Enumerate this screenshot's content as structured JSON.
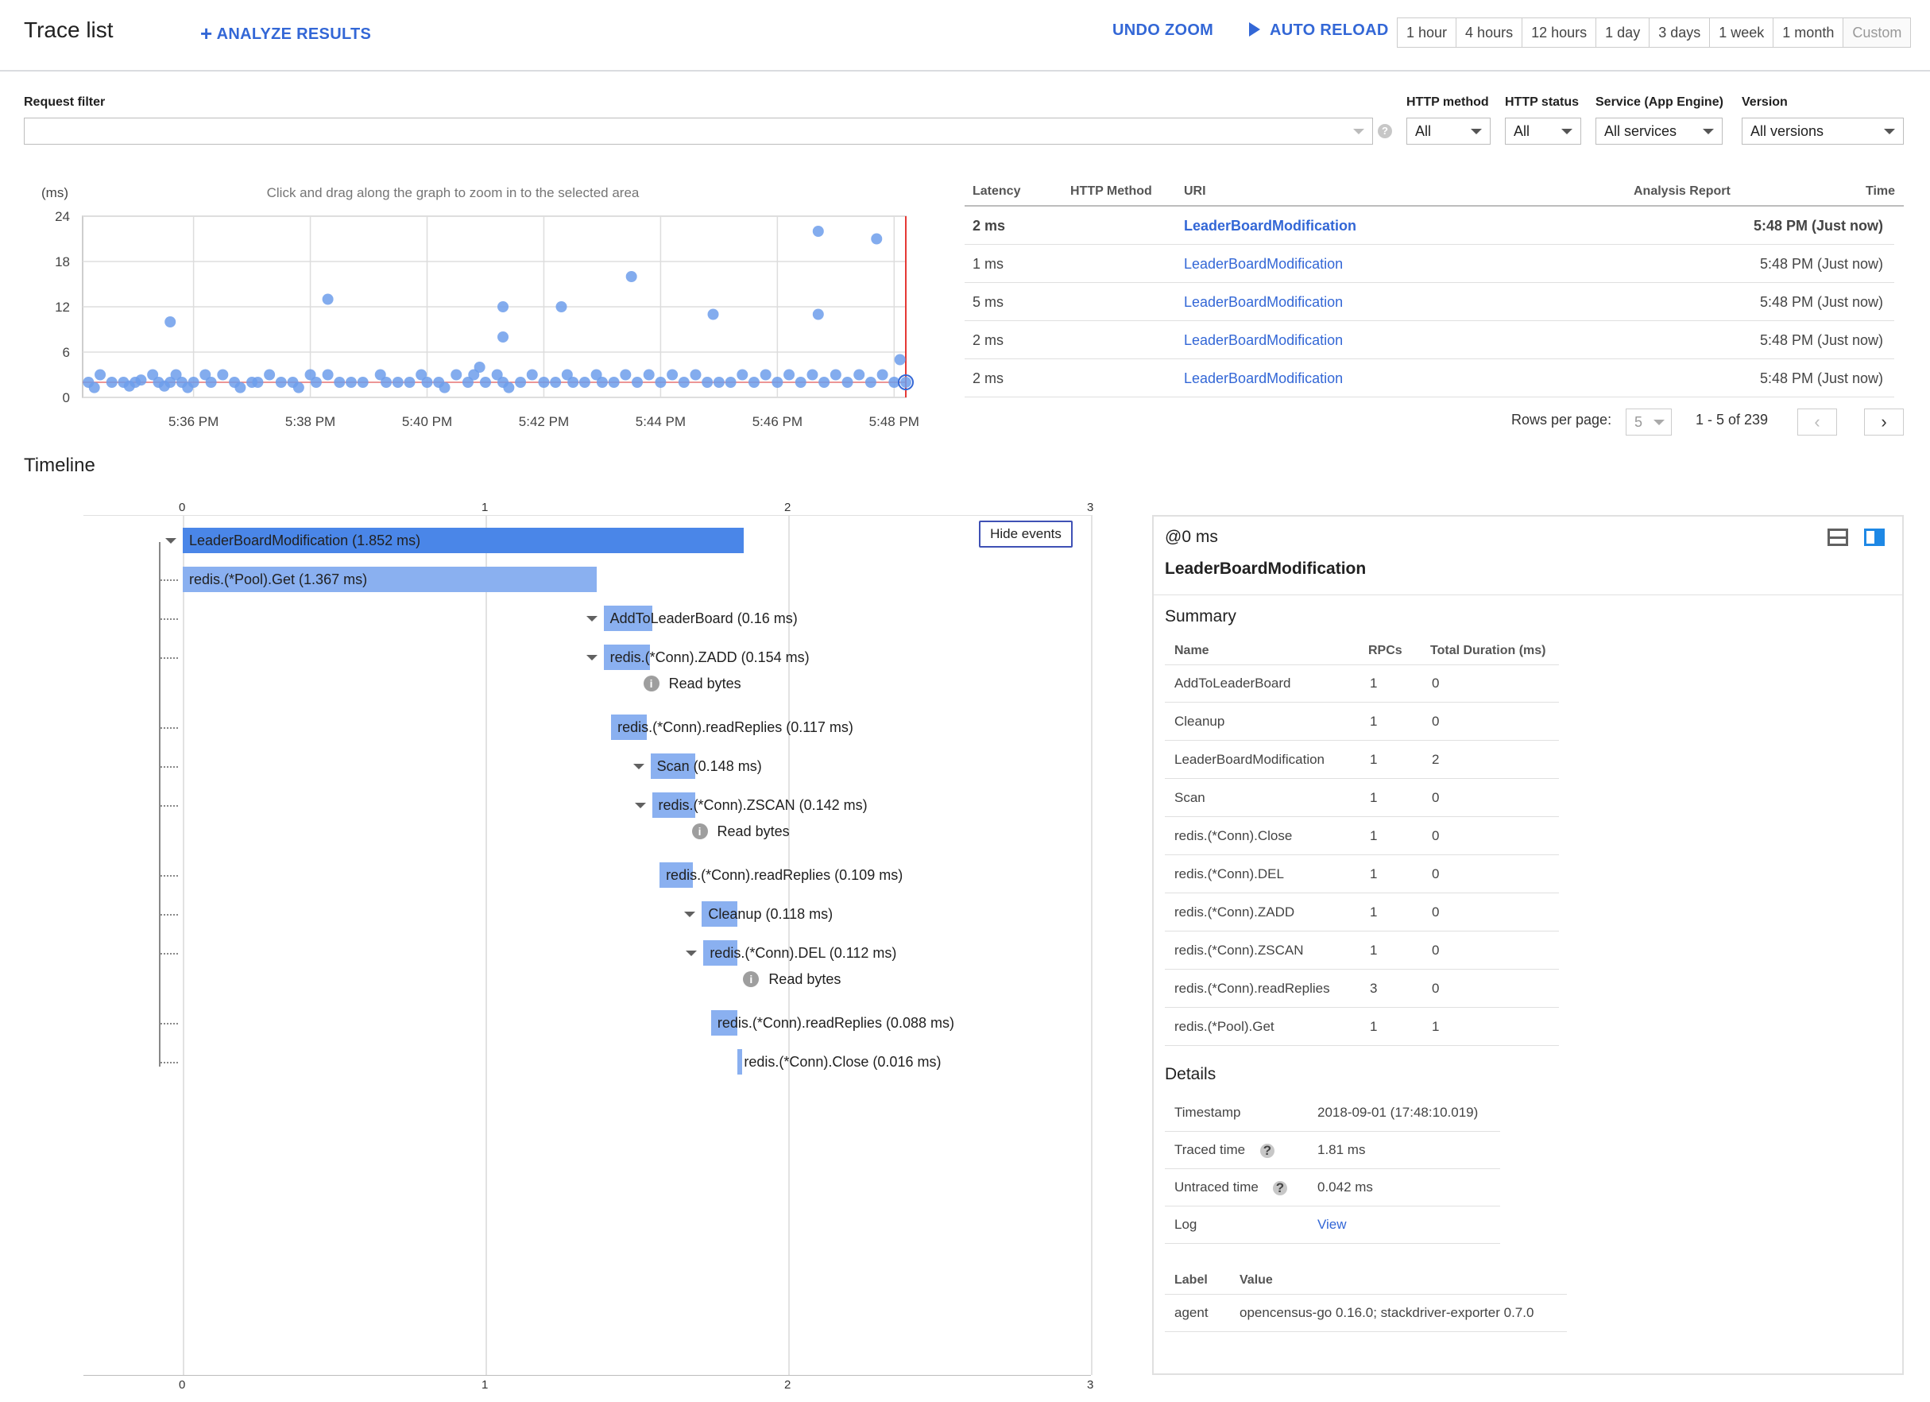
{
  "header": {
    "title": "Trace list",
    "analyze_label": "ANALYZE RESULTS",
    "undo_zoom_label": "UNDO ZOOM",
    "auto_reload_label": "AUTO RELOAD",
    "time_ranges": [
      "1 hour",
      "4 hours",
      "12 hours",
      "1 day",
      "3 days",
      "1 week",
      "1 month",
      "Custom"
    ]
  },
  "filters": {
    "request_filter_label": "Request filter",
    "request_filter_value": "",
    "http_method_label": "HTTP method",
    "http_method_value": "All",
    "http_status_label": "HTTP status",
    "http_status_value": "All",
    "service_label": "Service (App Engine)",
    "service_value": "All services",
    "version_label": "Version",
    "version_value": "All versions"
  },
  "chart_data": {
    "type": "scatter",
    "title": "",
    "hint": "Click and drag along the graph to zoom in to the selected area",
    "ylabel": "(ms)",
    "xlabel": "",
    "ylim": [
      0,
      24
    ],
    "y_ticks": [
      "0",
      "6",
      "12",
      "18",
      "24"
    ],
    "x_ticks": [
      "5:36 PM",
      "5:38 PM",
      "5:40 PM",
      "5:42 PM",
      "5:44 PM",
      "5:46 PM",
      "5:48 PM"
    ],
    "xlim_minutes": [
      34.1,
      48.2
    ],
    "grid": true,
    "points": [
      [
        34.2,
        2
      ],
      [
        34.3,
        1.3
      ],
      [
        34.4,
        3
      ],
      [
        34.6,
        2
      ],
      [
        34.8,
        2
      ],
      [
        34.9,
        1.5
      ],
      [
        35,
        2
      ],
      [
        35.1,
        2.3
      ],
      [
        35.3,
        3
      ],
      [
        35.4,
        2
      ],
      [
        35.5,
        1.5
      ],
      [
        35.6,
        2
      ],
      [
        35.7,
        3
      ],
      [
        35.8,
        2
      ],
      [
        35.9,
        1.3
      ],
      [
        35.6,
        10
      ],
      [
        36,
        2
      ],
      [
        36.2,
        3
      ],
      [
        36.3,
        2
      ],
      [
        36.5,
        3
      ],
      [
        36.7,
        2
      ],
      [
        36.8,
        1.3
      ],
      [
        37,
        2
      ],
      [
        37.1,
        2
      ],
      [
        37.3,
        3
      ],
      [
        37.5,
        2
      ],
      [
        37.7,
        2
      ],
      [
        37.8,
        1.3
      ],
      [
        38,
        3
      ],
      [
        38.1,
        2
      ],
      [
        38.3,
        3
      ],
      [
        38.5,
        2
      ],
      [
        38.7,
        2
      ],
      [
        38.9,
        2
      ],
      [
        38.3,
        13
      ],
      [
        39.2,
        3
      ],
      [
        39.3,
        2
      ],
      [
        39.5,
        2
      ],
      [
        39.7,
        2
      ],
      [
        39.9,
        3
      ],
      [
        40,
        2
      ],
      [
        40.2,
        2
      ],
      [
        40.3,
        1.3
      ],
      [
        40.5,
        3
      ],
      [
        40.7,
        2
      ],
      [
        40.8,
        3
      ],
      [
        40.9,
        4
      ],
      [
        41,
        2
      ],
      [
        41.2,
        3
      ],
      [
        41.3,
        2
      ],
      [
        41.4,
        1.3
      ],
      [
        41.3,
        12
      ],
      [
        41.3,
        8
      ],
      [
        41.6,
        2
      ],
      [
        41.8,
        3
      ],
      [
        42,
        2
      ],
      [
        42.2,
        2
      ],
      [
        42.4,
        3
      ],
      [
        42.5,
        2
      ],
      [
        42.7,
        2
      ],
      [
        42.9,
        3
      ],
      [
        43,
        2
      ],
      [
        43.2,
        2
      ],
      [
        43.4,
        3
      ],
      [
        43.6,
        2
      ],
      [
        43.8,
        3
      ],
      [
        44,
        2
      ],
      [
        44.2,
        3
      ],
      [
        44.4,
        2
      ],
      [
        44.6,
        3
      ],
      [
        44.8,
        2
      ],
      [
        45,
        2
      ],
      [
        42.3,
        12
      ],
      [
        43.5,
        16
      ],
      [
        44.9,
        11
      ],
      [
        45.2,
        2
      ],
      [
        45.4,
        3
      ],
      [
        45.6,
        2
      ],
      [
        45.8,
        3
      ],
      [
        46,
        2
      ],
      [
        46.2,
        3
      ],
      [
        46.4,
        2
      ],
      [
        46.6,
        3
      ],
      [
        46.8,
        2
      ],
      [
        47,
        3
      ],
      [
        47.2,
        2
      ],
      [
        47.4,
        3
      ],
      [
        47.6,
        2
      ],
      [
        47.8,
        3
      ],
      [
        48,
        2
      ],
      [
        48.1,
        5
      ],
      [
        48.2,
        2
      ],
      [
        46.7,
        22
      ],
      [
        46.7,
        11
      ],
      [
        47.7,
        21
      ]
    ]
  },
  "traces": {
    "columns": [
      "Latency",
      "HTTP Method",
      "URI",
      "Analysis Report",
      "Time"
    ],
    "rows": [
      {
        "latency": "2 ms",
        "method": "",
        "uri": "LeaderBoardModification",
        "report": "",
        "time": "5:48 PM (Just now)"
      },
      {
        "latency": "1 ms",
        "method": "",
        "uri": "LeaderBoardModification",
        "report": "",
        "time": "5:48 PM (Just now)"
      },
      {
        "latency": "5 ms",
        "method": "",
        "uri": "LeaderBoardModification",
        "report": "",
        "time": "5:48 PM (Just now)"
      },
      {
        "latency": "2 ms",
        "method": "",
        "uri": "LeaderBoardModification",
        "report": "",
        "time": "5:48 PM (Just now)"
      },
      {
        "latency": "2 ms",
        "method": "",
        "uri": "LeaderBoardModification",
        "report": "",
        "time": "5:48 PM (Just now)"
      }
    ],
    "rows_per_page_label": "Rows per page:",
    "rows_per_page_value": "5",
    "range_text": "1 - 5 of 239"
  },
  "timeline": {
    "title": "Timeline",
    "ticks": [
      "0",
      "1",
      "2",
      "3"
    ],
    "hide_events_label": "Hide events",
    "spans": [
      {
        "label": "LeaderBoardModification (1.852 ms)",
        "start": 0,
        "duration": 1.852,
        "color": "#4a86e8",
        "expand": true,
        "event": ""
      },
      {
        "label": "redis.(*Pool).Get (1.367 ms)",
        "start": 0,
        "duration": 1.367,
        "color": "#8ab0f0",
        "expand": false,
        "event": ""
      },
      {
        "label": "AddToLeaderBoard (0.16 ms)",
        "start": 1.39,
        "duration": 0.16,
        "color": "#8ab0f0",
        "expand": true,
        "event": ""
      },
      {
        "label": "redis.(*Conn).ZADD (0.154 ms)",
        "start": 1.39,
        "duration": 0.154,
        "color": "#8ab0f0",
        "expand": true,
        "event": "Read bytes"
      },
      {
        "label": "redis.(*Conn).readReplies (0.117 ms)",
        "start": 1.415,
        "duration": 0.117,
        "color": "#8ab0f0",
        "expand": false,
        "event": ""
      },
      {
        "label": "Scan (0.148 ms)",
        "start": 1.545,
        "duration": 0.148,
        "color": "#8ab0f0",
        "expand": true,
        "event": ""
      },
      {
        "label": "redis.(*Conn).ZSCAN (0.142 ms)",
        "start": 1.55,
        "duration": 0.142,
        "color": "#8ab0f0",
        "expand": true,
        "event": "Read bytes"
      },
      {
        "label": "redis.(*Conn).readReplies (0.109 ms)",
        "start": 1.575,
        "duration": 0.109,
        "color": "#8ab0f0",
        "expand": false,
        "event": ""
      },
      {
        "label": "Cleanup (0.118 ms)",
        "start": 1.715,
        "duration": 0.118,
        "color": "#8ab0f0",
        "expand": true,
        "event": ""
      },
      {
        "label": "redis.(*Conn).DEL (0.112 ms)",
        "start": 1.72,
        "duration": 0.112,
        "color": "#8ab0f0",
        "expand": true,
        "event": "Read bytes"
      },
      {
        "label": "redis.(*Conn).readReplies (0.088 ms)",
        "start": 1.745,
        "duration": 0.088,
        "color": "#8ab0f0",
        "expand": false,
        "event": ""
      },
      {
        "label": "redis.(*Conn).Close (0.016 ms)",
        "start": 1.833,
        "duration": 0.016,
        "color": "#8ab0f0",
        "expand": false,
        "event": ""
      }
    ]
  },
  "details_panel": {
    "offset": "@0 ms",
    "span_name": "LeaderBoardModification",
    "summary_title": "Summary",
    "summary_columns": [
      "Name",
      "RPCs",
      "Total Duration (ms)"
    ],
    "summary_rows": [
      [
        "AddToLeaderBoard",
        "1",
        "0"
      ],
      [
        "Cleanup",
        "1",
        "0"
      ],
      [
        "LeaderBoardModification",
        "1",
        "2"
      ],
      [
        "Scan",
        "1",
        "0"
      ],
      [
        "redis.(*Conn).Close",
        "1",
        "0"
      ],
      [
        "redis.(*Conn).DEL",
        "1",
        "0"
      ],
      [
        "redis.(*Conn).ZADD",
        "1",
        "0"
      ],
      [
        "redis.(*Conn).ZSCAN",
        "1",
        "0"
      ],
      [
        "redis.(*Conn).readReplies",
        "3",
        "0"
      ],
      [
        "redis.(*Pool).Get",
        "1",
        "1"
      ]
    ],
    "details_title": "Details",
    "timestamp_label": "Timestamp",
    "timestamp_value": "2018-09-01 (17:48:10.019)",
    "traced_label": "Traced time",
    "traced_value": "1.81 ms",
    "untraced_label": "Untraced time",
    "untraced_value": "0.042 ms",
    "log_label": "Log",
    "log_value": "View",
    "label_col": "Label",
    "value_col": "Value",
    "label_key": "agent",
    "label_value": "opencensus-go 0.16.0; stackdriver-exporter 0.7.0"
  },
  "colors": {
    "accent": "#3367d6",
    "primary_span": "#4a86e8",
    "child_span": "#8ab0f0",
    "scatter_point": "#6d9eeb"
  }
}
